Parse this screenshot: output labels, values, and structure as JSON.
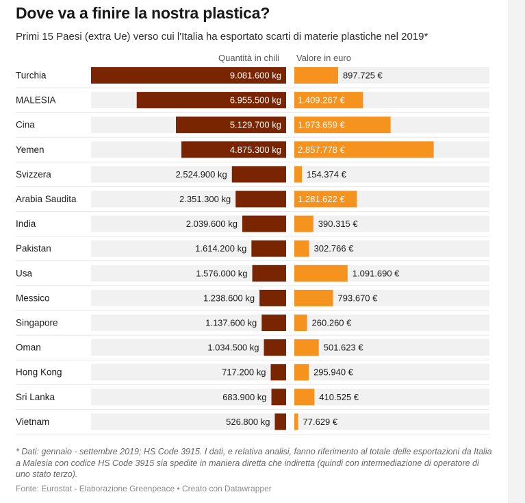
{
  "title": "Dove va a finire la nostra plastica?",
  "subtitle": "Primi 15 Paesi (extra Ue) verso cui l'Italia ha esportato scarti di materie plastiche nel 2019*",
  "columns": {
    "qty": "Quantità in chili",
    "val": "Valore in euro"
  },
  "note": "* Dati: gennaio - settembre 2019; HS Code 3915. I dati, e relativa analisi, fanno riferimento al totale delle esportazioni da Italia a Malesia con codice HS Code 3915 sia spedite in maniera diretta che indiretta (quindi con intermediazione di operatore di uno stato terzo).",
  "source": "Fonte: Eurostat - Elaborazione Greenpeace • Creato con Datawrapper",
  "colors": {
    "qty": "#7a2502",
    "val": "#f6921e",
    "row_bg": "#f1f1f1"
  },
  "chart_data": {
    "type": "bar",
    "categories": [
      "Turchia",
      "MALESIA",
      "Cina",
      "Yemen",
      "Svizzera",
      "Arabia Saudita",
      "India",
      "Pakistan",
      "Usa",
      "Messico",
      "Singapore",
      "Oman",
      "Hong Kong",
      "Sri Lanka",
      "Vietnam"
    ],
    "series": [
      {
        "name": "Quantità in chili",
        "values": [
          9081600,
          6955500,
          5129700,
          4875300,
          2524900,
          2351300,
          2039600,
          1614200,
          1576000,
          1238600,
          1137600,
          1034500,
          717200,
          683900,
          526800
        ],
        "labels": [
          "9.081.600 kg",
          "6.955.500 kg",
          "5.129.700 kg",
          "4.875.300 kg",
          "2.524.900 kg",
          "2.351.300 kg",
          "2.039.600 kg",
          "1.614.200 kg",
          "1.576.000 kg",
          "1.238.600 kg",
          "1.137.600 kg",
          "1.034.500 kg",
          "717.200 kg",
          "683.900 kg",
          "526.800 kg"
        ]
      },
      {
        "name": "Valore in euro",
        "values": [
          897725,
          1409267,
          1973659,
          2857778,
          154374,
          1281622,
          390315,
          302766,
          1091690,
          793670,
          260260,
          501623,
          295940,
          410525,
          77629
        ],
        "labels": [
          "897.725 €",
          "1.409.267 €",
          "1.973.659 €",
          "2.857.778 €",
          "154.374 €",
          "1.281.622 €",
          "390.315 €",
          "302.766 €",
          "1.091.690 €",
          "793.670 €",
          "260.260 €",
          "501.623 €",
          "295.940 €",
          "410.525 €",
          "77.629 €"
        ]
      }
    ]
  }
}
